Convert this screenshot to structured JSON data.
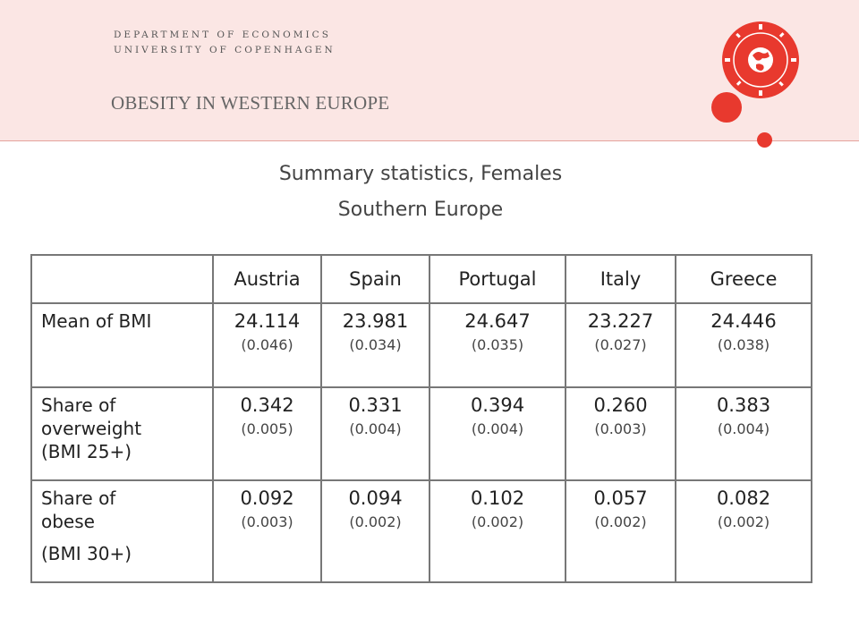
{
  "header": {
    "dept_line1": "DEPARTMENT OF ECONOMICS",
    "dept_line2": "UNIVERSITY OF COPENHAGEN",
    "deck_title": "OBESITY IN WESTERN EUROPE",
    "accent_color": "#e8392e"
  },
  "slide": {
    "subtitle_line1": "Summary statistics, Females",
    "subtitle_line2": "Southern Europe"
  },
  "table": {
    "columns": [
      "Austria",
      "Spain",
      "Portugal",
      "Italy",
      "Greece"
    ],
    "rows": [
      {
        "label_lines": [
          "Mean of BMI"
        ],
        "cells": [
          {
            "value": "24.114",
            "se": "(0.046)"
          },
          {
            "value": "23.981",
            "se": "(0.034)"
          },
          {
            "value": "24.647",
            "se": "(0.035)"
          },
          {
            "value": "23.227",
            "se": "(0.027)"
          },
          {
            "value": "24.446",
            "se": "(0.038)"
          }
        ]
      },
      {
        "label_lines": [
          "Share of",
          "overweight",
          "(BMI 25+)"
        ],
        "cells": [
          {
            "value": "0.342",
            "se": "(0.005)"
          },
          {
            "value": "0.331",
            "se": "(0.004)"
          },
          {
            "value": "0.394",
            "se": "(0.004)"
          },
          {
            "value": "0.260",
            "se": "(0.003)"
          },
          {
            "value": "0.383",
            "se": "(0.004)"
          }
        ]
      },
      {
        "label_lines": [
          "Share of",
          "obese",
          "(BMI 30+)"
        ],
        "cells": [
          {
            "value": "0.092",
            "se": "(0.003)"
          },
          {
            "value": "0.094",
            "se": "(0.002)"
          },
          {
            "value": "0.102",
            "se": "(0.002)"
          },
          {
            "value": "0.057",
            "se": "(0.002)"
          },
          {
            "value": "0.082",
            "se": "(0.002)"
          }
        ]
      }
    ]
  }
}
